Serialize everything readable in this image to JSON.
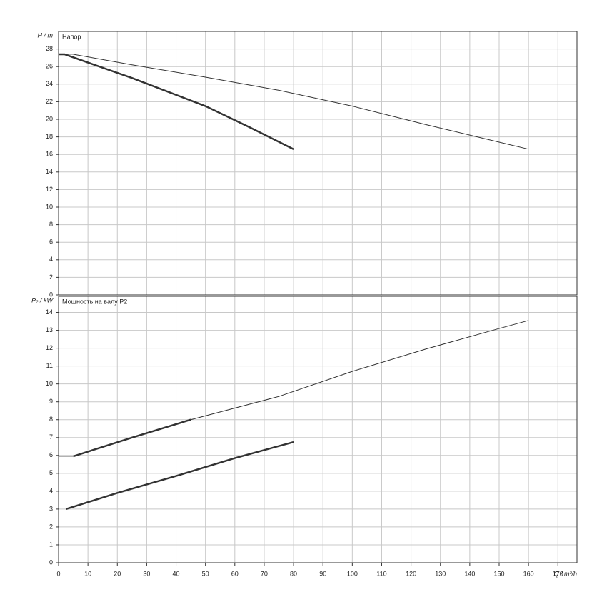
{
  "chart_data": [
    {
      "type": "line",
      "title": "Напор",
      "ylabel": "H / m",
      "xlim": [
        0,
        176.5
      ],
      "xticks": [
        0,
        10,
        20,
        30,
        40,
        50,
        60,
        70,
        80,
        90,
        100,
        110,
        120,
        130,
        140,
        150,
        160,
        170
      ],
      "ylim": [
        0,
        30
      ],
      "yticks": [
        0,
        2,
        4,
        6,
        8,
        10,
        12,
        14,
        16,
        18,
        20,
        22,
        24,
        26,
        28
      ],
      "grid": true,
      "series": [
        {
          "color": "#999999",
          "line_width": 1.5,
          "x": [
            0,
            5
          ],
          "values": [
            27.4,
            27.4
          ]
        },
        {
          "color": "#333333",
          "line_width": 1,
          "x": [
            5,
            25,
            50,
            75,
            100,
            125,
            150,
            160
          ],
          "values": [
            27.4,
            26.2,
            24.8,
            23.3,
            21.5,
            19.4,
            17.4,
            16.6
          ]
        },
        {
          "color": "#333333",
          "line_width": 2.5,
          "x": [
            0,
            2,
            25,
            50,
            65,
            80
          ],
          "values": [
            27.4,
            27.4,
            24.7,
            21.5,
            19.1,
            16.6
          ]
        }
      ]
    },
    {
      "type": "line",
      "title": "Мощность на валу P2",
      "ylabel": "P₂ / kW",
      "xlabel": "Q / m³/h",
      "xlim": [
        0,
        176.5
      ],
      "xticks": [
        0,
        10,
        20,
        30,
        40,
        50,
        60,
        70,
        80,
        90,
        100,
        110,
        120,
        130,
        140,
        150,
        160,
        170
      ],
      "ylim": [
        0,
        14.9
      ],
      "yticks": [
        0,
        1,
        2,
        3,
        4,
        5,
        6,
        7,
        8,
        9,
        10,
        11,
        12,
        13,
        14
      ],
      "grid": true,
      "series": [
        {
          "color": "#999999",
          "line_width": 1.5,
          "x": [
            0,
            5
          ],
          "values": [
            5.95,
            5.95
          ]
        },
        {
          "color": "#333333",
          "line_width": 2.5,
          "x": [
            5,
            25,
            45
          ],
          "values": [
            5.95,
            7.0,
            8.0
          ]
        },
        {
          "color": "#333333",
          "line_width": 1,
          "x": [
            45,
            75,
            100,
            125,
            150,
            160
          ],
          "values": [
            8.0,
            9.3,
            10.7,
            11.95,
            13.1,
            13.55
          ]
        },
        {
          "color": "#333333",
          "line_width": 2.5,
          "x": [
            2.5,
            20,
            40,
            60,
            80
          ],
          "values": [
            3.0,
            3.9,
            4.85,
            5.85,
            6.75
          ]
        }
      ]
    }
  ]
}
